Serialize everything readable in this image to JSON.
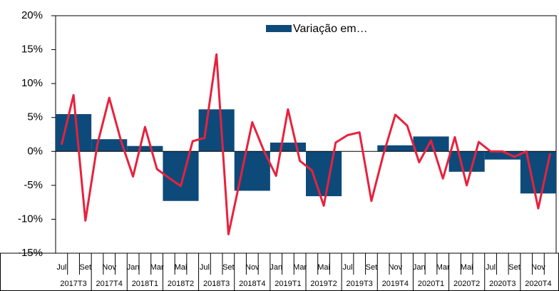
{
  "chart_data": {
    "type": "bar_line",
    "quarters": [
      "2017T3",
      "2017T4",
      "2018T1",
      "2018T2",
      "2018T3",
      "2018T4",
      "2019T1",
      "2019T2",
      "2019T3",
      "2019T4",
      "2020T1",
      "2020T2",
      "2020T3",
      "2020T4"
    ],
    "months": [
      "Jul",
      null,
      "Set",
      null,
      "Nov",
      null,
      "Jan",
      null,
      "Mar",
      null,
      "Mai",
      null,
      "Jul",
      null,
      "Set",
      null,
      "Nov",
      null,
      "Jan",
      null,
      "Mar",
      null,
      "Mai",
      null,
      "Jul",
      null,
      "Set",
      null,
      "Nov",
      null,
      "Jan",
      null,
      "Mar",
      null,
      "Mai",
      null,
      "Jul",
      null,
      "Set",
      null,
      "Nov",
      null
    ],
    "series": [
      {
        "name": "Variação em…",
        "type": "bar",
        "color": "#0d4a7a",
        "values": [
          5.5,
          1.8,
          0.8,
          -7.3,
          6.2,
          -5.8,
          1.3,
          -6.6,
          0,
          0.9,
          2.2,
          -3.0,
          -1.2,
          -6.2
        ]
      },
      {
        "type": "line",
        "color": "#e8213c",
        "values": [
          1.0,
          8.3,
          -10.2,
          1.0,
          7.9,
          1.5,
          -3.7,
          3.6,
          -2.6,
          -3.9,
          -5.1,
          1.5,
          2.0,
          14.3,
          -12.2,
          -4.0,
          4.3,
          0.0,
          -3.6,
          6.2,
          -1.4,
          -2.8,
          -8.0,
          1.3,
          2.4,
          2.8,
          -7.3,
          -0.5,
          5.4,
          3.8,
          -1.6,
          1.6,
          -4.0,
          2.1,
          -5.0,
          1.4,
          0.0,
          0.0,
          -0.8,
          0.0,
          -8.4,
          -0.3
        ]
      }
    ],
    "ylim": [
      -15,
      20
    ],
    "yticks": [
      {
        "value": -15,
        "label": "-15%"
      },
      {
        "value": -10,
        "label": "-10%"
      },
      {
        "value": -5,
        "label": "-5%"
      },
      {
        "value": 0,
        "label": "0%"
      },
      {
        "value": 5,
        "label": "5%"
      },
      {
        "value": 10,
        "label": "10%"
      },
      {
        "value": 15,
        "label": "15%"
      },
      {
        "value": 20,
        "label": "20%"
      }
    ],
    "legend": "top"
  }
}
